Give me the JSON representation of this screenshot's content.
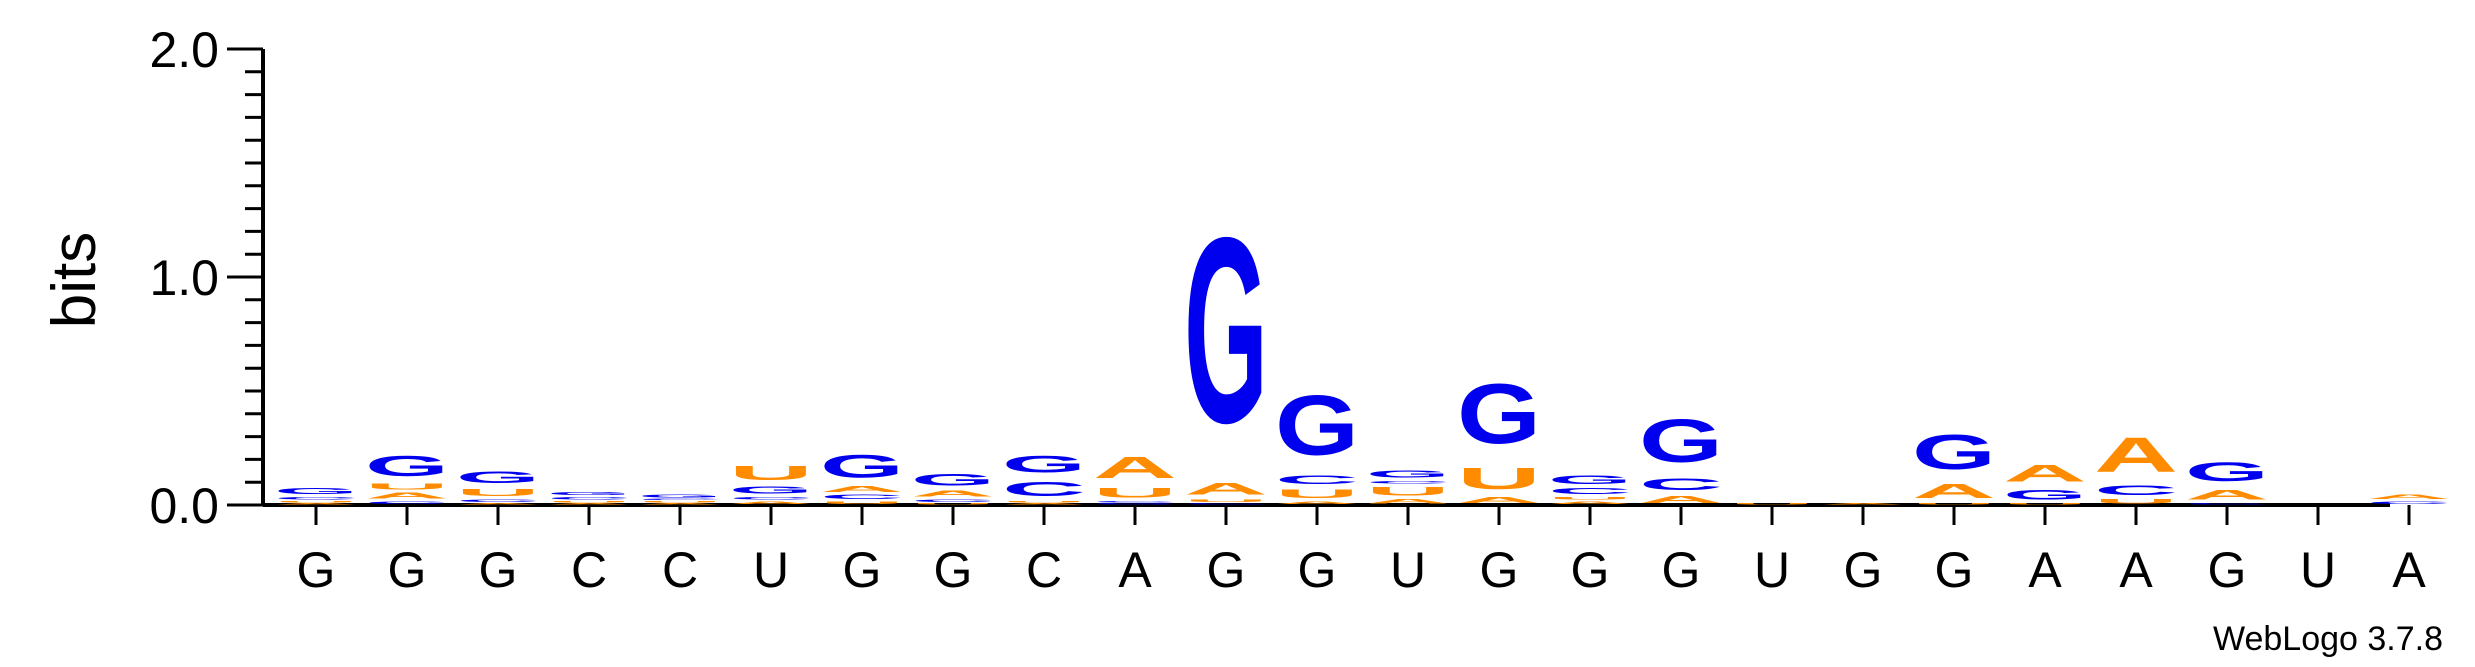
{
  "chart_data": {
    "type": "sequence-logo",
    "ylabel": "bits",
    "ylim": [
      0,
      2
    ],
    "yticks": [
      "0.0",
      "1.0",
      "2.0"
    ],
    "credit": "WebLogo 3.7.8",
    "colors": {
      "G": "#0000ee",
      "C": "#0000ee",
      "A": "#ff8c00",
      "U": "#ff8c00"
    },
    "categories": [
      "G",
      "G",
      "G",
      "C",
      "C",
      "U",
      "G",
      "G",
      "C",
      "A",
      "G",
      "G",
      "U",
      "G",
      "G",
      "G",
      "U",
      "G",
      "G",
      "A",
      "A",
      "G",
      "U",
      "A"
    ],
    "stacks": [
      [
        {
          "l": "A",
          "v": 0.01
        },
        {
          "l": "U",
          "v": 0.01
        },
        {
          "l": "C",
          "v": 0.02
        },
        {
          "l": "G",
          "v": 0.04
        }
      ],
      [
        {
          "l": "C",
          "v": 0.02
        },
        {
          "l": "A",
          "v": 0.04
        },
        {
          "l": "U",
          "v": 0.04
        },
        {
          "l": "G",
          "v": 0.14
        }
      ],
      [
        {
          "l": "A",
          "v": 0.01
        },
        {
          "l": "C",
          "v": 0.02
        },
        {
          "l": "U",
          "v": 0.05
        },
        {
          "l": "G",
          "v": 0.08
        }
      ],
      [
        {
          "l": "A",
          "v": 0.01
        },
        {
          "l": "U",
          "v": 0.01
        },
        {
          "l": "C",
          "v": 0.02
        },
        {
          "l": "G",
          "v": 0.02
        }
      ],
      [
        {
          "l": "A",
          "v": 0.01
        },
        {
          "l": "U",
          "v": 0.01
        },
        {
          "l": "C",
          "v": 0.01
        },
        {
          "l": "G",
          "v": 0.02
        }
      ],
      [
        {
          "l": "A",
          "v": 0.02
        },
        {
          "l": "C",
          "v": 0.02
        },
        {
          "l": "G",
          "v": 0.05
        },
        {
          "l": "U",
          "v": 0.1
        }
      ],
      [
        {
          "l": "U",
          "v": 0.02
        },
        {
          "l": "C",
          "v": 0.03
        },
        {
          "l": "A",
          "v": 0.04
        },
        {
          "l": "G",
          "v": 0.16
        }
      ],
      [
        {
          "l": "U",
          "v": 0.01
        },
        {
          "l": "C",
          "v": 0.02
        },
        {
          "l": "A",
          "v": 0.04
        },
        {
          "l": "G",
          "v": 0.08
        }
      ],
      [
        {
          "l": "A",
          "v": 0.01
        },
        {
          "l": "U",
          "v": 0.01
        },
        {
          "l": "C",
          "v": 0.1
        },
        {
          "l": "G",
          "v": 0.12
        }
      ],
      [
        {
          "l": "G",
          "v": 0.01
        },
        {
          "l": "C",
          "v": 0.01
        },
        {
          "l": "U",
          "v": 0.07
        },
        {
          "l": "A",
          "v": 0.15
        }
      ],
      [
        {
          "l": "C",
          "v": 0.01
        },
        {
          "l": "U",
          "v": 0.02
        },
        {
          "l": "A",
          "v": 0.08
        },
        {
          "l": "G",
          "v": 1.3
        }
      ],
      [
        {
          "l": "A",
          "v": 0.02
        },
        {
          "l": "U",
          "v": 0.06
        },
        {
          "l": "C",
          "v": 0.06
        },
        {
          "l": "G",
          "v": 0.42
        }
      ],
      [
        {
          "l": "A",
          "v": 0.03
        },
        {
          "l": "U",
          "v": 0.06
        },
        {
          "l": "C",
          "v": 0.02
        },
        {
          "l": "G",
          "v": 0.05
        }
      ],
      [
        {
          "l": "A",
          "v": 0.04
        },
        {
          "l": "U",
          "v": 0.15
        },
        {
          "l": "G",
          "v": 0.42
        }
      ],
      [
        {
          "l": "A",
          "v": 0.02
        },
        {
          "l": "U",
          "v": 0.02
        },
        {
          "l": "C",
          "v": 0.04
        },
        {
          "l": "G",
          "v": 0.06
        }
      ],
      [
        {
          "l": "A",
          "v": 0.05
        },
        {
          "l": "C",
          "v": 0.08
        },
        {
          "l": "G",
          "v": 0.3
        }
      ],
      [
        {
          "l": "U",
          "v": 0.01
        }
      ],
      [
        {
          "l": "A",
          "v": 0.01
        }
      ],
      [
        {
          "l": "U",
          "v": 0.01
        },
        {
          "l": "A",
          "v": 0.1
        },
        {
          "l": "G",
          "v": 0.24
        }
      ],
      [
        {
          "l": "U",
          "v": 0.01
        },
        {
          "l": "G",
          "v": 0.07
        },
        {
          "l": "A",
          "v": 0.12
        }
      ],
      [
        {
          "l": "U",
          "v": 0.03
        },
        {
          "l": "C",
          "v": 0.07
        },
        {
          "l": "A",
          "v": 0.24
        }
      ],
      [
        {
          "l": "C",
          "v": 0.01
        },
        {
          "l": "A",
          "v": 0.07
        },
        {
          "l": "G",
          "v": 0.13
        }
      ],
      [],
      [
        {
          "l": "C",
          "v": 0.02
        },
        {
          "l": "A",
          "v": 0.03
        }
      ]
    ]
  }
}
